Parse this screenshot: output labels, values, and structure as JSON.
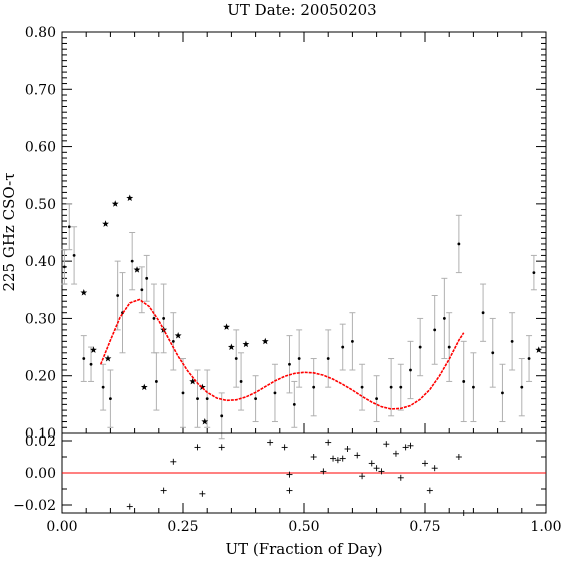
{
  "colors": {
    "fit": "#ff0000",
    "errorbar": "#b0b0b0",
    "zero_line": "#ff0000",
    "points": "#000000"
  },
  "chart_data": [
    {
      "panel": "main",
      "type": "scatter",
      "title": "UT Date: 20050203",
      "xlabel": "",
      "ylabel": "225 GHz CSO-τ",
      "xlim": [
        0.0,
        1.0
      ],
      "ylim": [
        0.1,
        0.8
      ],
      "yticks": [
        "0.10",
        "0.20",
        "0.30",
        "0.40",
        "0.50",
        "0.60",
        "0.70",
        "0.80"
      ],
      "grid": false,
      "series": [
        {
          "marker": "dot-with-errorbar",
          "x": [
            0.005,
            0.015,
            0.025,
            0.045,
            0.06,
            0.085,
            0.1,
            0.115,
            0.125,
            0.145,
            0.165,
            0.175,
            0.19,
            0.195,
            0.21,
            0.23,
            0.25,
            0.28,
            0.3,
            0.33,
            0.36,
            0.37,
            0.4,
            0.44,
            0.47,
            0.48,
            0.49,
            0.52,
            0.55,
            0.58,
            0.6,
            0.62,
            0.65,
            0.68,
            0.7,
            0.72,
            0.74,
            0.77,
            0.79,
            0.8,
            0.82,
            0.83,
            0.85,
            0.87,
            0.89,
            0.91,
            0.93,
            0.95,
            0.965,
            0.975
          ],
          "y": [
            0.39,
            0.46,
            0.41,
            0.23,
            0.22,
            0.18,
            0.16,
            0.34,
            0.31,
            0.4,
            0.35,
            0.37,
            0.3,
            0.19,
            0.3,
            0.26,
            0.17,
            0.16,
            0.16,
            0.13,
            0.23,
            0.19,
            0.16,
            0.17,
            0.22,
            0.15,
            0.23,
            0.18,
            0.23,
            0.25,
            0.26,
            0.18,
            0.16,
            0.18,
            0.18,
            0.21,
            0.25,
            0.28,
            0.3,
            0.25,
            0.43,
            0.19,
            0.18,
            0.31,
            0.24,
            0.17,
            0.26,
            0.18,
            0.23,
            0.38
          ],
          "err": [
            0.03,
            0.04,
            0.05,
            0.04,
            0.03,
            0.04,
            0.05,
            0.06,
            0.07,
            0.05,
            0.04,
            0.04,
            0.06,
            0.05,
            0.06,
            0.05,
            0.06,
            0.05,
            0.05,
            0.04,
            0.05,
            0.05,
            0.04,
            0.05,
            0.05,
            0.04,
            0.05,
            0.05,
            0.05,
            0.04,
            0.05,
            0.04,
            0.04,
            0.05,
            0.04,
            0.05,
            0.05,
            0.06,
            0.07,
            0.06,
            0.05,
            0.07,
            0.06,
            0.05,
            0.06,
            0.05,
            0.05,
            0.05,
            0.04,
            0.03
          ]
        },
        {
          "marker": "star",
          "x": [
            0.045,
            0.065,
            0.09,
            0.095,
            0.11,
            0.14,
            0.155,
            0.17,
            0.21,
            0.24,
            0.27,
            0.29,
            0.295,
            0.34,
            0.35,
            0.38,
            0.42,
            0.985
          ],
          "y": [
            0.345,
            0.245,
            0.465,
            0.23,
            0.5,
            0.51,
            0.385,
            0.18,
            0.28,
            0.27,
            0.19,
            0.18,
            0.12,
            0.285,
            0.25,
            0.255,
            0.26,
            0.245
          ]
        },
        {
          "marker": "fit-line",
          "x": [
            0.08,
            0.1,
            0.12,
            0.14,
            0.16,
            0.18,
            0.2,
            0.22,
            0.24,
            0.26,
            0.28,
            0.3,
            0.32,
            0.34,
            0.36,
            0.38,
            0.4,
            0.42,
            0.44,
            0.46,
            0.48,
            0.5,
            0.52,
            0.54,
            0.56,
            0.58,
            0.6,
            0.62,
            0.64,
            0.66,
            0.68,
            0.7,
            0.72,
            0.74,
            0.76,
            0.78,
            0.8,
            0.82,
            0.83
          ],
          "y": [
            0.22,
            0.262,
            0.302,
            0.327,
            0.333,
            0.321,
            0.296,
            0.265,
            0.234,
            0.208,
            0.187,
            0.171,
            0.161,
            0.157,
            0.158,
            0.163,
            0.171,
            0.181,
            0.191,
            0.199,
            0.204,
            0.206,
            0.205,
            0.201,
            0.194,
            0.185,
            0.175,
            0.164,
            0.154,
            0.146,
            0.142,
            0.143,
            0.148,
            0.159,
            0.176,
            0.2,
            0.229,
            0.262,
            0.275
          ]
        }
      ]
    },
    {
      "panel": "residuals",
      "type": "scatter",
      "xlabel": "UT (Fraction of Day)",
      "ylabel": "",
      "xlim": [
        0.0,
        1.0
      ],
      "ylim": [
        -0.025,
        0.025
      ],
      "xticks": [
        "0.00",
        "0.25",
        "0.50",
        "0.75",
        "1.00"
      ],
      "yticks": [
        "−0.02",
        "0.00",
        "0.02"
      ],
      "series": [
        {
          "marker": "plus",
          "x": [
            0.14,
            0.21,
            0.23,
            0.28,
            0.29,
            0.33,
            0.43,
            0.46,
            0.47,
            0.47,
            0.52,
            0.54,
            0.55,
            0.56,
            0.57,
            0.58,
            0.59,
            0.61,
            0.62,
            0.64,
            0.65,
            0.66,
            0.67,
            0.69,
            0.7,
            0.71,
            0.72,
            0.75,
            0.76,
            0.77,
            0.82,
            0.83
          ],
          "y": [
            -0.021,
            -0.011,
            0.007,
            0.016,
            -0.013,
            0.016,
            0.019,
            0.016,
            -0.011,
            -0.001,
            0.01,
            0.001,
            0.019,
            0.009,
            0.008,
            0.009,
            0.015,
            0.011,
            -0.002,
            0.006,
            0.003,
            0.001,
            0.018,
            0.012,
            -0.003,
            0.016,
            0.017,
            0.006,
            -0.011,
            0.003,
            0.01,
            -0.025
          ]
        }
      ]
    }
  ]
}
